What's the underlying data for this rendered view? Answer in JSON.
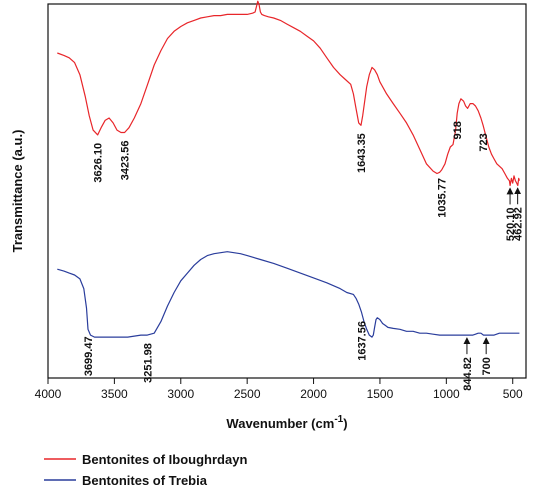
{
  "chart_data": {
    "type": "line",
    "title": "",
    "xlabel": "Wavenumber (cm",
    "xlabel_sup": "-1",
    "xlabel_close": ")",
    "ylabel": "Transmittance  (a.u.)",
    "x_reversed": true,
    "xlim": [
      4000,
      400
    ],
    "ylim": [
      0,
      1
    ],
    "y_ticks_shown": false,
    "grid": false,
    "legend_position": "bottom-left",
    "x_ticks": [
      4000,
      3500,
      3000,
      2500,
      2000,
      1500,
      1000,
      500
    ],
    "x_tick_labels": [
      "4000",
      "3500",
      "3000",
      "2500",
      "2000",
      "1500",
      "1000",
      "500"
    ],
    "series": [
      {
        "name": "Bentonites of Iboughrdayn",
        "color": "#e8262a",
        "x": [
          3930,
          3880,
          3840,
          3800,
          3760,
          3720,
          3690,
          3660,
          3626,
          3600,
          3570,
          3540,
          3510,
          3480,
          3450,
          3423,
          3390,
          3350,
          3300,
          3250,
          3200,
          3150,
          3100,
          3050,
          3000,
          2950,
          2900,
          2850,
          2800,
          2750,
          2700,
          2650,
          2600,
          2550,
          2500,
          2460,
          2440,
          2420,
          2410,
          2400,
          2390,
          2370,
          2340,
          2300,
          2250,
          2200,
          2150,
          2100,
          2050,
          2000,
          1950,
          1900,
          1850,
          1800,
          1760,
          1720,
          1700,
          1680,
          1660,
          1643,
          1630,
          1615,
          1600,
          1580,
          1560,
          1540,
          1520,
          1500,
          1450,
          1400,
          1350,
          1300,
          1250,
          1200,
          1150,
          1100,
          1070,
          1050,
          1035,
          1010,
          990,
          970,
          950,
          930,
          918,
          905,
          890,
          870,
          855,
          840,
          820,
          800,
          780,
          760,
          740,
          723,
          700,
          680,
          660,
          640,
          620,
          600,
          580,
          560,
          540,
          525,
          520,
          510,
          500,
          490,
          480,
          470,
          462,
          455,
          450
        ],
        "y": [
          0.83,
          0.82,
          0.81,
          0.79,
          0.74,
          0.65,
          0.57,
          0.51,
          0.49,
          0.52,
          0.55,
          0.56,
          0.54,
          0.51,
          0.5,
          0.5,
          0.52,
          0.56,
          0.62,
          0.7,
          0.78,
          0.84,
          0.89,
          0.92,
          0.94,
          0.955,
          0.965,
          0.975,
          0.98,
          0.985,
          0.985,
          0.99,
          0.99,
          0.99,
          0.99,
          0.995,
          1.0,
          1.045,
          1.03,
          1.0,
          0.99,
          0.985,
          0.98,
          0.975,
          0.965,
          0.95,
          0.935,
          0.92,
          0.9,
          0.88,
          0.85,
          0.81,
          0.77,
          0.74,
          0.72,
          0.7,
          0.66,
          0.6,
          0.54,
          0.53,
          0.57,
          0.63,
          0.69,
          0.74,
          0.77,
          0.76,
          0.74,
          0.71,
          0.66,
          0.62,
          0.58,
          0.54,
          0.49,
          0.43,
          0.37,
          0.34,
          0.33,
          0.335,
          0.345,
          0.37,
          0.41,
          0.44,
          0.45,
          0.51,
          0.58,
          0.62,
          0.64,
          0.63,
          0.61,
          0.6,
          0.62,
          0.62,
          0.61,
          0.59,
          0.56,
          0.53,
          0.48,
          0.44,
          0.41,
          0.39,
          0.37,
          0.36,
          0.35,
          0.33,
          0.31,
          0.3,
          0.28,
          0.31,
          0.29,
          0.32,
          0.3,
          0.29,
          0.28,
          0.31,
          0.3
        ]
      },
      {
        "name": "Bentonites of Trebia",
        "color": "#2a3d9c",
        "x": [
          3930,
          3880,
          3840,
          3800,
          3760,
          3730,
          3710,
          3699,
          3680,
          3650,
          3600,
          3550,
          3500,
          3450,
          3400,
          3350,
          3300,
          3252,
          3200,
          3150,
          3100,
          3050,
          3000,
          2950,
          2900,
          2850,
          2800,
          2750,
          2700,
          2650,
          2600,
          2550,
          2500,
          2400,
          2300,
          2200,
          2100,
          2000,
          1900,
          1800,
          1750,
          1700,
          1680,
          1660,
          1640,
          1620,
          1600,
          1580,
          1560,
          1550,
          1540,
          1530,
          1520,
          1500,
          1480,
          1460,
          1440,
          1400,
          1350,
          1300,
          1250,
          1200,
          1150,
          1100,
          1050,
          1000,
          950,
          900,
          845,
          800,
          780,
          760,
          740,
          720,
          700,
          680,
          660,
          640,
          600,
          550,
          500,
          460,
          450
        ],
        "y": [
          0.53,
          0.52,
          0.51,
          0.5,
          0.48,
          0.43,
          0.33,
          0.22,
          0.19,
          0.18,
          0.18,
          0.18,
          0.18,
          0.18,
          0.18,
          0.185,
          0.19,
          0.19,
          0.2,
          0.26,
          0.34,
          0.41,
          0.47,
          0.51,
          0.55,
          0.58,
          0.6,
          0.61,
          0.615,
          0.62,
          0.615,
          0.61,
          0.6,
          0.58,
          0.56,
          0.535,
          0.51,
          0.485,
          0.46,
          0.43,
          0.41,
          0.4,
          0.38,
          0.35,
          0.31,
          0.26,
          0.22,
          0.19,
          0.18,
          0.19,
          0.23,
          0.27,
          0.28,
          0.27,
          0.25,
          0.24,
          0.23,
          0.225,
          0.22,
          0.21,
          0.21,
          0.2,
          0.2,
          0.195,
          0.19,
          0.19,
          0.19,
          0.19,
          0.19,
          0.19,
          0.195,
          0.2,
          0.2,
          0.19,
          0.19,
          0.19,
          0.19,
          0.19,
          0.2,
          0.2,
          0.2,
          0.2,
          0.2
        ]
      }
    ],
    "annotations": [
      {
        "text": "3626.10",
        "series": "Bentonites of Iboughrdayn",
        "x": 3626.1
      },
      {
        "text": "3423.56",
        "series": "Bentonites of Iboughrdayn",
        "x": 3423.56
      },
      {
        "text": "1643.35",
        "series": "Bentonites of Iboughrdayn",
        "x": 1643.35
      },
      {
        "text": "1035.77",
        "series": "Bentonites of Iboughrdayn",
        "x": 1035.77
      },
      {
        "text": "918",
        "series": "Bentonites of Iboughrdayn",
        "x": 918
      },
      {
        "text": "723",
        "series": "Bentonites of Iboughrdayn",
        "x": 723
      },
      {
        "text": "520.10",
        "series": "Bentonites of Iboughrdayn",
        "x": 520.1,
        "arrow": true
      },
      {
        "text": "462.92",
        "series": "Bentonites of Iboughrdayn",
        "x": 462.92,
        "arrow": true
      },
      {
        "text": "3699.47",
        "series": "Bentonites of Trebia",
        "x": 3699.47
      },
      {
        "text": "3251.98",
        "series": "Bentonites of Trebia",
        "x": 3251.98
      },
      {
        "text": "1637.56",
        "series": "Bentonites of Trebia",
        "x": 1637.56
      },
      {
        "text": "844.82",
        "series": "Bentonites of Trebia",
        "x": 844.82,
        "arrow": true
      },
      {
        "text": "700",
        "series": "Bentonites of Trebia",
        "x": 700,
        "arrow": true
      }
    ]
  }
}
